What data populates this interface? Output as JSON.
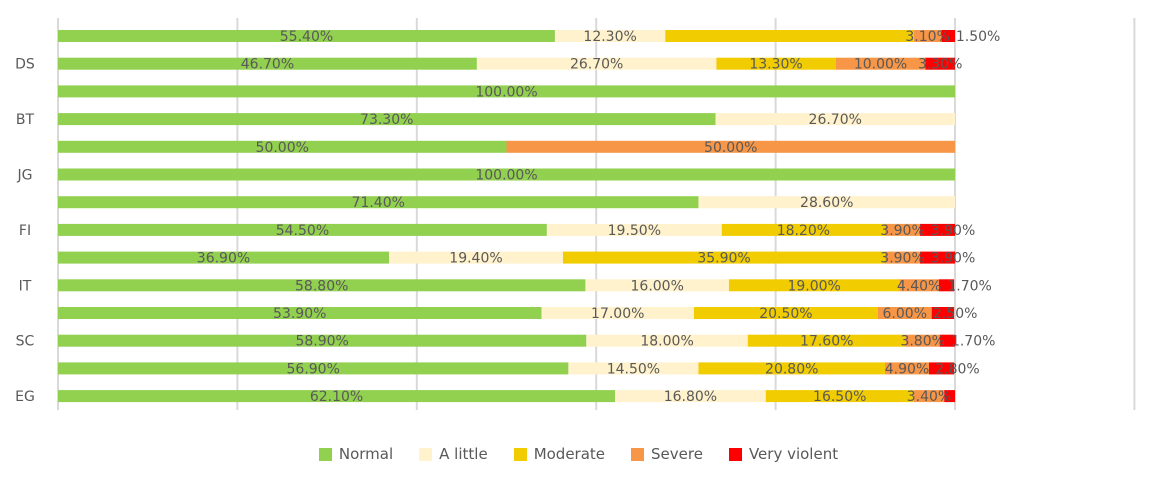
{
  "chart_data": {
    "type": "bar",
    "orientation": "horizontal",
    "stacked": true,
    "title": "",
    "xlabel": "",
    "ylabel": "",
    "xlim": [
      0,
      120
    ],
    "grid": true,
    "legend_position": "bottom",
    "categories": [
      "",
      "DS",
      "",
      "BT",
      "",
      "JG",
      "",
      "FI",
      "",
      "IT",
      "",
      "SC",
      "",
      "EG"
    ],
    "series": [
      {
        "name": "Normal",
        "color": "#92d050",
        "values": [
          55.4,
          46.7,
          100,
          73.3,
          50,
          100,
          71.4,
          54.5,
          36.9,
          58.8,
          53.9,
          58.9,
          56.9,
          62.1
        ]
      },
      {
        "name": "A little",
        "color": "#fff2cc",
        "values": [
          12.3,
          26.7,
          0,
          26.7,
          0,
          0,
          28.6,
          19.5,
          19.4,
          16.0,
          17.0,
          18.0,
          14.5,
          16.8
        ]
      },
      {
        "name": "Moderate",
        "color": "#f0cc00",
        "values": [
          27.7,
          13.3,
          0,
          0,
          0,
          0,
          0,
          18.2,
          35.9,
          19.0,
          20.5,
          17.6,
          20.8,
          16.5
        ]
      },
      {
        "name": "Severe",
        "color": "#f79646",
        "values": [
          3.1,
          10.0,
          0,
          0,
          50,
          0,
          0,
          3.9,
          3.9,
          4.4,
          6.0,
          3.8,
          4.9,
          3.4
        ]
      },
      {
        "name": "Very violent",
        "color": "#ff0000",
        "values": [
          1.5,
          3.3,
          0,
          0,
          0,
          0,
          0,
          3.9,
          3.9,
          1.7,
          2.5,
          1.7,
          2.8,
          1.2
        ]
      }
    ],
    "hidden_labels": [
      [
        0,
        2
      ],
      [
        13,
        4
      ]
    ]
  }
}
